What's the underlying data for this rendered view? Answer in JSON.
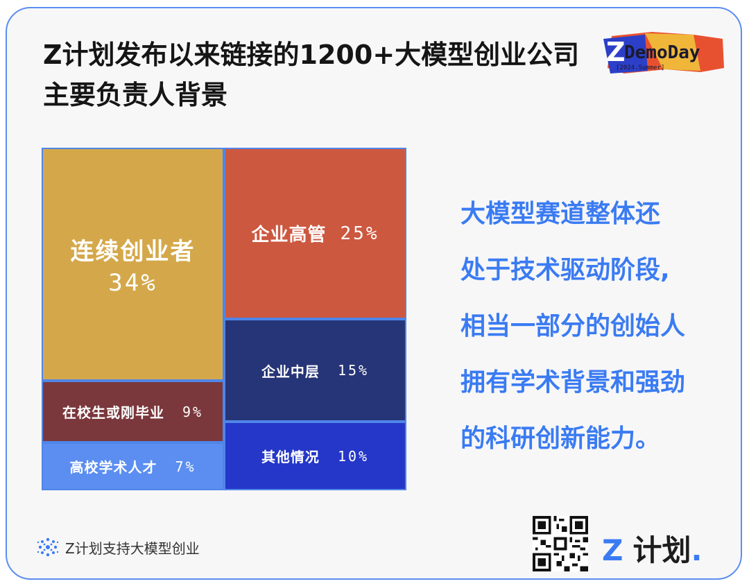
{
  "title": {
    "line1": "Z计划发布以来链接的1200+大模型创业公司",
    "line2": "主要负责人背景"
  },
  "logo": {
    "letter": "Z",
    "main": "DemoDay",
    "sub": "[2024.Summer]"
  },
  "chart_data": {
    "type": "treemap",
    "items": [
      {
        "label": "连续创业者",
        "value": 34,
        "value_label": "34%",
        "color": "#d4a84a"
      },
      {
        "label": "企业高管",
        "value": 25,
        "value_label": "25%",
        "color": "#cc5840"
      },
      {
        "label": "企业中层",
        "value": 15,
        "value_label": "15%",
        "color": "#263577"
      },
      {
        "label": "其他情况",
        "value": 10,
        "value_label": "10%",
        "color": "#2537c8"
      },
      {
        "label": "在校生或刚毕业",
        "value": 9,
        "value_label": "9%",
        "color": "#7a373c"
      },
      {
        "label": "高校学术人才",
        "value": 7,
        "value_label": "7%",
        "color": "#5b8ef0"
      }
    ]
  },
  "insight": {
    "lines": [
      "大模型赛道整体还",
      "处于技术驱动阶段,",
      "相当一部分的创始人",
      "拥有学术背景和强劲",
      "的科研创新能力。"
    ]
  },
  "footer": {
    "tagline": "Z计划支持大模型创业",
    "brand_z": "Z",
    "brand_name": "计划",
    "brand_dot": "."
  }
}
